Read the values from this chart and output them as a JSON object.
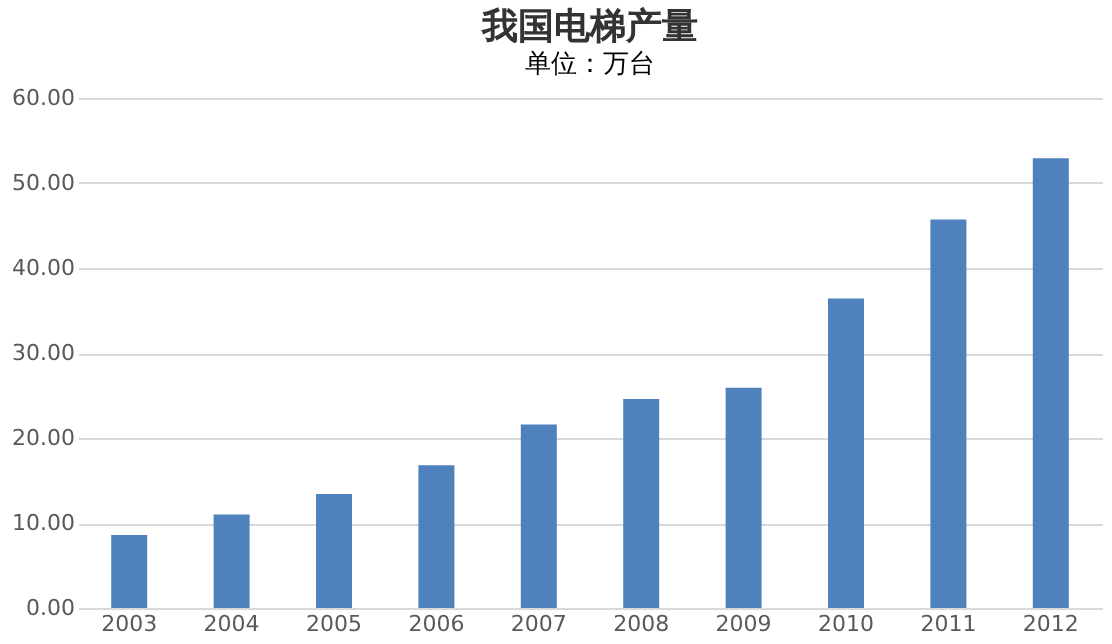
{
  "chart_data": {
    "type": "bar",
    "title": "我国电梯产量",
    "subtitle": "单位：万台",
    "categories": [
      "2003",
      "2004",
      "2005",
      "2006",
      "2007",
      "2008",
      "2009",
      "2010",
      "2011",
      "2012"
    ],
    "values": [
      8.6,
      11.0,
      13.4,
      16.8,
      21.6,
      24.6,
      25.9,
      36.4,
      45.7,
      52.9
    ],
    "color": "#4f81bd",
    "ylim": [
      0,
      60
    ],
    "yticks": [
      {
        "value": 0,
        "label": "0.00"
      },
      {
        "value": 10,
        "label": "10.00"
      },
      {
        "value": 20,
        "label": "20.00"
      },
      {
        "value": 30,
        "label": "30.00"
      },
      {
        "value": 40,
        "label": "40.00"
      },
      {
        "value": 50,
        "label": "50.00"
      },
      {
        "value": 60,
        "label": "60.00"
      }
    ],
    "grid": "y"
  }
}
